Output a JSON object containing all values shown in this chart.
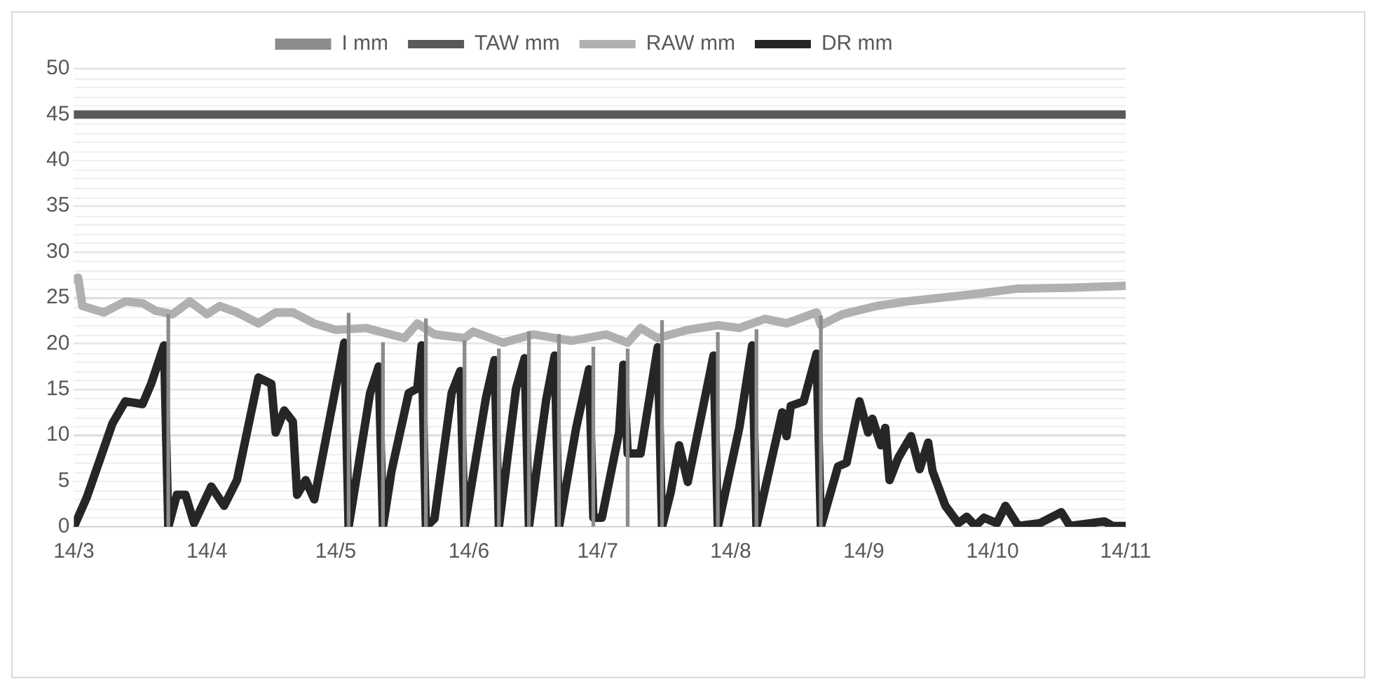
{
  "chart_data": {
    "type": "line",
    "legend": "top",
    "grid": "y",
    "marker": "none",
    "line_style": "solid",
    "xlim": [
      "--03-14",
      "--11-14"
    ],
    "xticks": [
      {
        "value": "--03-14",
        "label": "14/3"
      },
      {
        "value": "--04-14",
        "label": "14/4"
      },
      {
        "value": "--05-14",
        "label": "14/5"
      },
      {
        "value": "--06-14",
        "label": "14/6"
      },
      {
        "value": "--07-14",
        "label": "14/7"
      },
      {
        "value": "--08-14",
        "label": "14/8"
      },
      {
        "value": "--09-14",
        "label": "14/9"
      },
      {
        "value": "--10-14",
        "label": "14/10"
      },
      {
        "value": "--11-14",
        "label": "14/11"
      }
    ],
    "ylim": [
      0,
      50
    ],
    "yticks": [
      0,
      5,
      10,
      15,
      20,
      25,
      30,
      35,
      40,
      45,
      50
    ],
    "series": [
      {
        "name": "I mm",
        "type": "bar",
        "color": "#8c8c8c",
        "x": [
          "--04-05",
          "--05-17",
          "--05-25",
          "--06-04",
          "--06-13",
          "--06-21",
          "--06-28",
          "--07-05",
          "--07-13",
          "--07-21",
          "--07-29",
          "--08-11",
          "--08-20",
          "--09-04"
        ],
        "values": [
          23.2,
          23.3,
          20.1,
          22.7,
          20.3,
          19.4,
          21.3,
          21.0,
          19.6,
          19.4,
          22.5,
          21.2,
          21.5,
          23
        ]
      },
      {
        "name": "TAW mm",
        "color": "#595959",
        "x": [
          "--03-14",
          "--11-14"
        ],
        "values": [
          45,
          45
        ]
      },
      {
        "name": "RAW mm",
        "color": "#b0b0b0",
        "x": [
          "--03-14",
          "--03-15",
          "--03-16",
          "--03-21",
          "--03-26",
          "--03-30",
          "--04-02",
          "--04-06",
          "--04-10",
          "--04-14",
          "--04-17",
          "--04-21",
          "--04-26",
          "--04-30",
          "--05-04",
          "--05-09",
          "--05-14",
          "--05-21",
          "--05-30",
          "--06-02",
          "--06-06",
          "--06-13",
          "--06-15",
          "--06-22",
          "--06-29",
          "--07-08",
          "--07-16",
          "--07-21",
          "--07-24",
          "--07-28",
          "--08-04",
          "--08-11",
          "--08-16",
          "--08-22",
          "--08-27",
          "--09-03",
          "--09-04",
          "--09-09",
          "--09-17",
          "--09-24",
          "--10-08",
          "--10-20",
          "--11-02",
          "--11-14"
        ],
        "values": [
          27,
          27.2,
          24.1,
          23.4,
          24.6,
          24.4,
          23.6,
          23.2,
          24.6,
          23.2,
          24.1,
          23.4,
          22.2,
          23.4,
          23.4,
          22.2,
          21.5,
          21.7,
          20.6,
          22.2,
          21,
          20.6,
          21.3,
          20.1,
          21,
          20.3,
          21,
          20.1,
          21.7,
          20.6,
          21.5,
          22,
          21.7,
          22.7,
          22.2,
          23.4,
          22,
          23.2,
          24.1,
          24.6,
          25.3,
          26,
          26.1,
          26.3
        ]
      },
      {
        "name": "DR mm",
        "color": "#262626",
        "x": [
          "--03-14",
          "--03-17",
          "--03-23",
          "--03-26",
          "--03-30",
          "--04-01",
          "--04-04",
          "--04-05",
          "--04-07",
          "--04-09",
          "--04-11",
          "--04-15",
          "--04-18",
          "--04-21",
          "--04-26",
          "--04-29",
          "--04-30",
          "--05-02",
          "--05-04",
          "--05-05",
          "--05-07",
          "--05-09",
          "--05-16",
          "--05-17",
          "--05-22",
          "--05-24",
          "--05-25",
          "--05-27",
          "--05-31",
          "--06-02",
          "--06-03",
          "--06-04",
          "--06-06",
          "--06-10",
          "--06-12",
          "--06-13",
          "--06-18",
          "--06-20",
          "--06-21",
          "--06-25",
          "--06-27",
          "--06-28",
          "--07-02",
          "--07-04",
          "--07-05",
          "--07-09",
          "--07-12",
          "--07-13",
          "--07-15",
          "--07-19",
          "--07-20",
          "--07-21",
          "--07-24",
          "--07-28",
          "--07-29",
          "--07-31",
          "--08-02",
          "--08-04",
          "--08-10",
          "--08-11",
          "--08-16",
          "--08-19",
          "--08-20",
          "--08-26",
          "--08-27",
          "--08-28",
          "--08-31",
          "--09-03",
          "--09-04",
          "--09-08",
          "--09-10",
          "--09-13",
          "--09-15",
          "--09-16",
          "--09-18",
          "--09-19",
          "--09-20",
          "--09-22",
          "--09-25",
          "--09-27",
          "--09-29",
          "--09-30",
          "--10-03",
          "--10-06",
          "--10-08",
          "--10-10",
          "--10-12",
          "--10-15",
          "--10-17",
          "--10-20",
          "--10-25",
          "--10-30",
          "--11-01",
          "--11-09",
          "--11-11",
          "--11-14"
        ],
        "values": [
          0,
          3.2,
          11.3,
          13.7,
          13.4,
          15.6,
          19.8,
          0,
          3.5,
          3.5,
          0.4,
          4.4,
          2.3,
          5.1,
          16.3,
          15.6,
          10.3,
          12.7,
          11.5,
          3.5,
          5.1,
          3,
          20.1,
          0,
          14.6,
          17.5,
          0,
          6.1,
          14.6,
          15.1,
          19.8,
          0,
          0.9,
          14.6,
          17,
          0,
          14.1,
          18.2,
          0,
          15.1,
          18.4,
          0,
          13.8,
          18.7,
          0,
          10.8,
          17.2,
          1,
          1,
          10.3,
          17.7,
          8,
          8,
          19.6,
          0,
          3.7,
          8.9,
          4.9,
          18.7,
          0,
          10.8,
          19.8,
          0,
          12.5,
          9.9,
          13.2,
          13.7,
          18.9,
          0,
          6.6,
          7,
          13.7,
          10.3,
          11.8,
          8.9,
          10.8,
          5.1,
          7.5,
          9.9,
          6.3,
          9.2,
          6.1,
          2.3,
          0.4,
          1.1,
          0.1,
          1,
          0.4,
          2.3,
          0.1,
          0.4,
          1.6,
          0.1,
          0.6,
          0.1,
          0.1
        ]
      }
    ]
  }
}
